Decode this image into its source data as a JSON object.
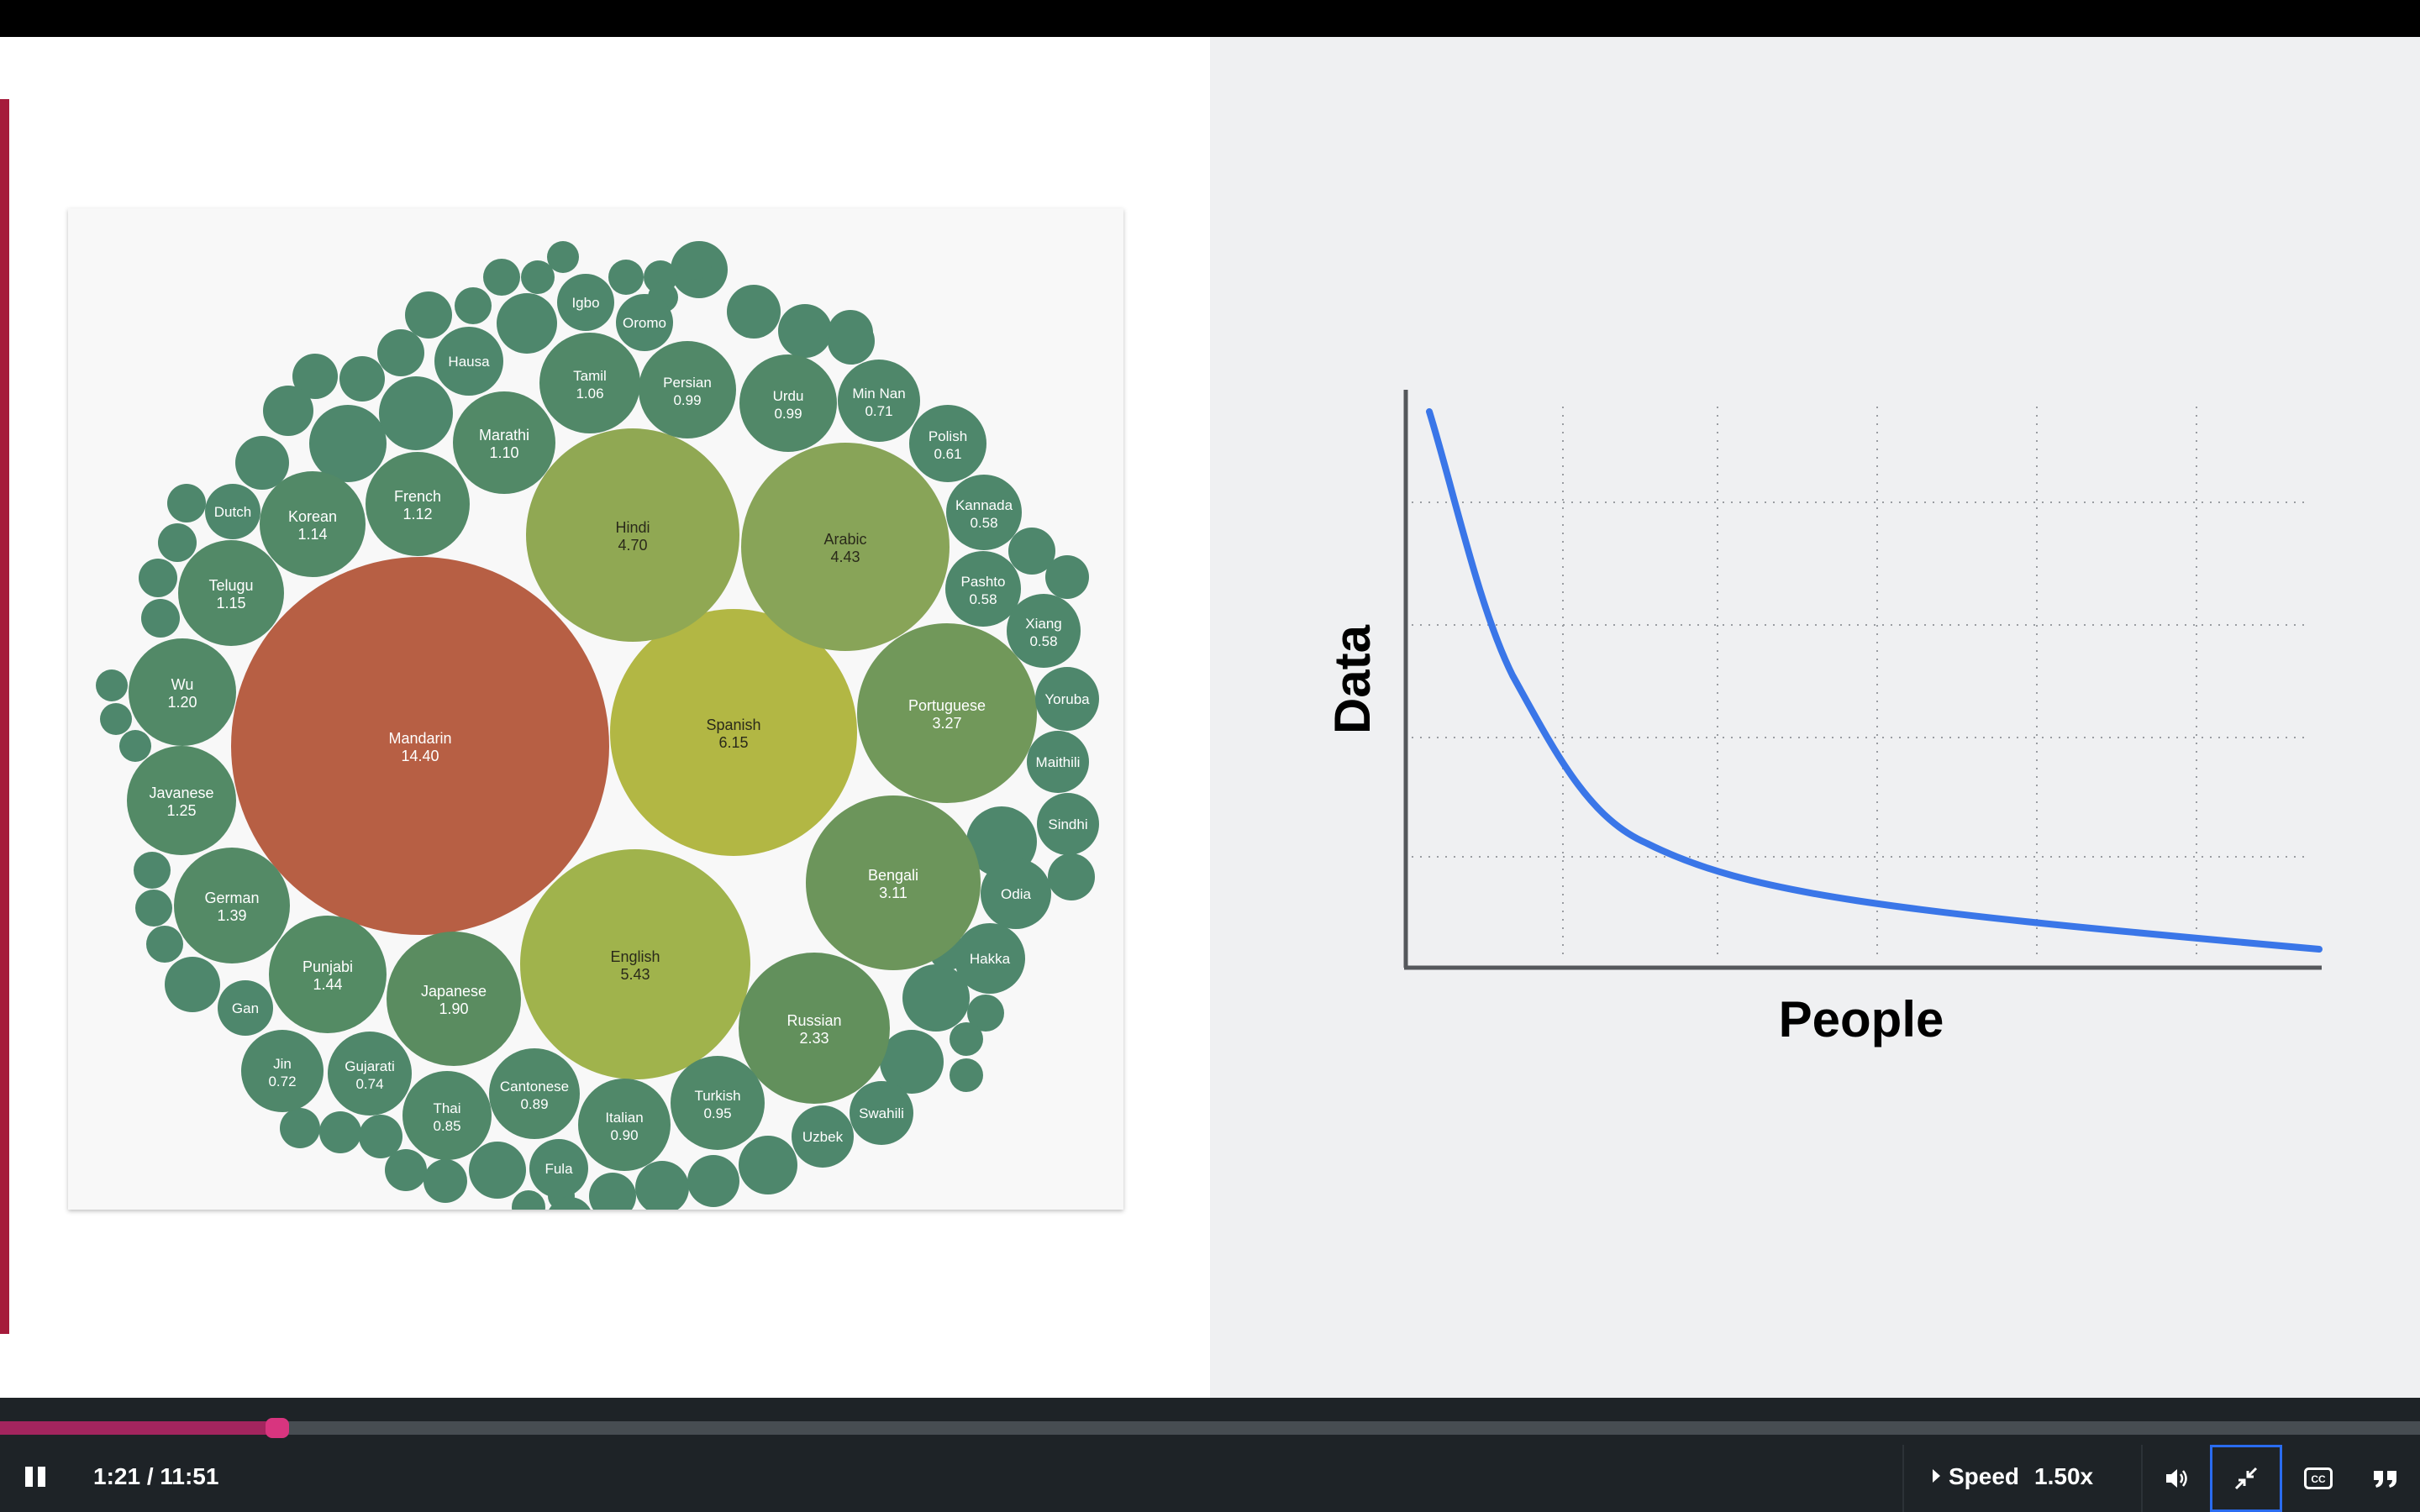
{
  "bubble_chart": {
    "chart_data": {
      "type": "bubble",
      "bubbles": [
        {
          "label": "Mandarin",
          "value": "14.40",
          "color": "#b75f44"
        },
        {
          "label": "Spanish",
          "value": "6.15",
          "color": "#b2b744"
        },
        {
          "label": "English",
          "value": "5.43",
          "color": "#a0b34c"
        },
        {
          "label": "Hindi",
          "value": "4.70",
          "color": "#90a853"
        },
        {
          "label": "Arabic",
          "value": "4.43",
          "color": "#88a458"
        },
        {
          "label": "Portuguese",
          "value": "3.27",
          "color": "#71985a"
        },
        {
          "label": "Bengali",
          "value": "3.11",
          "color": "#6c955b"
        },
        {
          "label": "Russian",
          "value": "2.33",
          "color": "#62905c"
        },
        {
          "label": "Japanese",
          "value": "1.90",
          "color": "#5a8c60"
        },
        {
          "label": "Punjabi",
          "value": "1.44",
          "color": "#548b64"
        },
        {
          "label": "German",
          "value": "1.39",
          "color": "#548a66"
        },
        {
          "label": "Javanese",
          "value": "1.25",
          "color": "#538a66"
        },
        {
          "label": "Wu",
          "value": "1.20",
          "color": "#528967"
        },
        {
          "label": "Telugu",
          "value": "1.15",
          "color": "#528967"
        },
        {
          "label": "Korean",
          "value": "1.14",
          "color": "#528967"
        },
        {
          "label": "French",
          "value": "1.12",
          "color": "#528967"
        },
        {
          "label": "Marathi",
          "value": "1.10",
          "color": "#528967"
        },
        {
          "label": "Tamil",
          "value": "1.06",
          "color": "#518868"
        },
        {
          "label": "Persian",
          "value": "0.99",
          "color": "#518868"
        },
        {
          "label": "Urdu",
          "value": "0.99",
          "color": "#518868"
        },
        {
          "label": "Turkish",
          "value": "0.95",
          "color": "#508869"
        },
        {
          "label": "Italian",
          "value": "0.90",
          "color": "#508869"
        },
        {
          "label": "Cantonese",
          "value": "0.89",
          "color": "#508869"
        },
        {
          "label": "Thai",
          "value": "0.85",
          "color": "#508869"
        },
        {
          "label": "Gujarati",
          "value": "0.74",
          "color": "#4f876a"
        },
        {
          "label": "Jin",
          "value": "0.72",
          "color": "#4f876a"
        },
        {
          "label": "Min Nan",
          "value": "0.71",
          "color": "#4f876a"
        },
        {
          "label": "Polish",
          "value": "0.61",
          "color": "#4e876b"
        },
        {
          "label": "Kannada",
          "value": "0.58",
          "color": "#4e876b"
        },
        {
          "label": "Pashto",
          "value": "0.58",
          "color": "#4e876b"
        },
        {
          "label": "Xiang",
          "value": "0.58",
          "color": "#4e876b"
        },
        {
          "label": "Yoruba",
          "value": "",
          "color": "#4e876c"
        },
        {
          "label": "Maithili",
          "value": "",
          "color": "#4e876c"
        },
        {
          "label": "Sindhi",
          "value": "",
          "color": "#4e876c"
        },
        {
          "label": "Odia",
          "value": "",
          "color": "#4e876c"
        },
        {
          "label": "Hakka",
          "value": "",
          "color": "#4e876c"
        },
        {
          "label": "Swahili",
          "value": "",
          "color": "#4e876c"
        },
        {
          "label": "Uzbek",
          "value": "",
          "color": "#4e876c"
        },
        {
          "label": "Fula",
          "value": "",
          "color": "#4e876c"
        },
        {
          "label": "Gan",
          "value": "",
          "color": "#4e876c"
        },
        {
          "label": "Dutch",
          "value": "",
          "color": "#4e876c"
        },
        {
          "label": "Hausa",
          "value": "",
          "color": "#4e876c"
        },
        {
          "label": "Igbo",
          "value": "",
          "color": "#4e876c"
        },
        {
          "label": "Oromo",
          "value": "",
          "color": "#4e876c"
        }
      ]
    }
  },
  "curve_chart": {
    "chart_data": {
      "type": "line",
      "xlabel": "People",
      "ylabel": "Data",
      "grid": true,
      "color": "#3a76e8"
    }
  },
  "player": {
    "time": "1:21 / 11:51",
    "progress": 0.1146,
    "speed_label": "Speed",
    "speed_value": "1.50x",
    "icons": {
      "pause": "pause-icon",
      "volume": "volume-icon",
      "fullscreen": "exit-fullscreen-icon",
      "captions": "closed-captions-icon",
      "transcript": "transcript-icon"
    }
  }
}
